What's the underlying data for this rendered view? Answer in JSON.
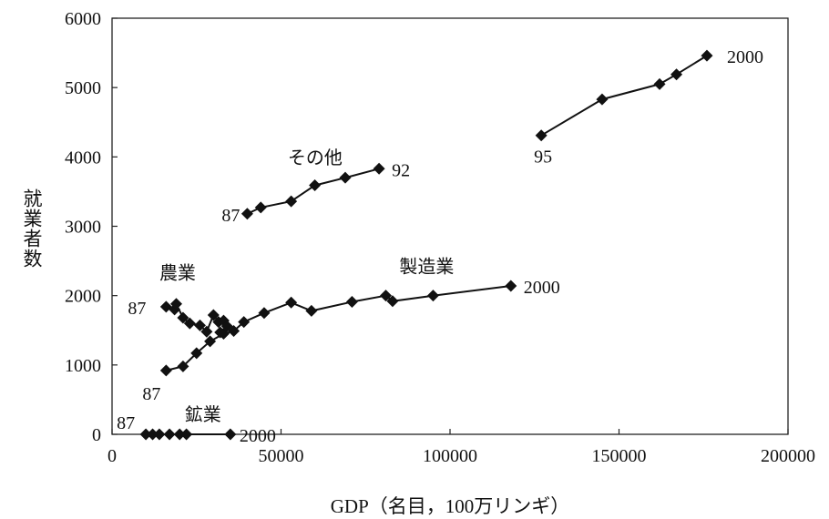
{
  "chart_data": {
    "type": "line",
    "xlabel": "GDP（名目，100万リンギ）",
    "ylabel": "就業者数",
    "xlim": [
      0,
      200000
    ],
    "ylim": [
      0,
      6000
    ],
    "x_ticks": [
      "0",
      "50000",
      "100000",
      "150000",
      "200000"
    ],
    "y_ticks": [
      "0",
      "1000",
      "2000",
      "3000",
      "4000",
      "5000",
      "6000"
    ],
    "grid": false,
    "legend": "none",
    "series": [
      {
        "name": "その他",
        "start_label": "87",
        "end_label": "92",
        "points": [
          [
            40000,
            3180
          ],
          [
            44000,
            3270
          ],
          [
            53000,
            3360
          ],
          [
            60000,
            3590
          ],
          [
            69000,
            3700
          ],
          [
            79000,
            3830
          ]
        ]
      },
      {
        "name": "",
        "start_label": "95",
        "end_label": "2000",
        "points": [
          [
            127000,
            4310
          ],
          [
            145000,
            4830
          ],
          [
            162000,
            5050
          ],
          [
            167000,
            5190
          ],
          [
            176000,
            5460
          ]
        ]
      },
      {
        "name": "製造業",
        "start_label": "87",
        "end_label": "2000",
        "points": [
          [
            16000,
            920
          ],
          [
            21000,
            980
          ],
          [
            25000,
            1170
          ],
          [
            29000,
            1340
          ],
          [
            33000,
            1450
          ],
          [
            36000,
            1490
          ],
          [
            39000,
            1620
          ],
          [
            45000,
            1750
          ],
          [
            53000,
            1900
          ],
          [
            59000,
            1780
          ],
          [
            71000,
            1910
          ],
          [
            81000,
            2000
          ],
          [
            83000,
            1920
          ],
          [
            95000,
            2000
          ],
          [
            118000,
            2140
          ]
        ]
      },
      {
        "name": "農業",
        "start_label": "87",
        "end_label": "",
        "points": [
          [
            16000,
            1840
          ],
          [
            18500,
            1800
          ],
          [
            19000,
            1880
          ],
          [
            21000,
            1680
          ],
          [
            23000,
            1600
          ],
          [
            26000,
            1570
          ],
          [
            28000,
            1480
          ],
          [
            30000,
            1720
          ],
          [
            31500,
            1620
          ],
          [
            33000,
            1640
          ],
          [
            34000,
            1560
          ],
          [
            32000,
            1470
          ]
        ]
      },
      {
        "name": "鉱業",
        "start_label": "87",
        "end_label": "2000",
        "points": [
          [
            10000,
            0
          ],
          [
            12000,
            0
          ],
          [
            14000,
            0
          ],
          [
            17000,
            0
          ],
          [
            20000,
            0
          ],
          [
            22000,
            0
          ],
          [
            35000,
            0
          ]
        ]
      }
    ]
  }
}
